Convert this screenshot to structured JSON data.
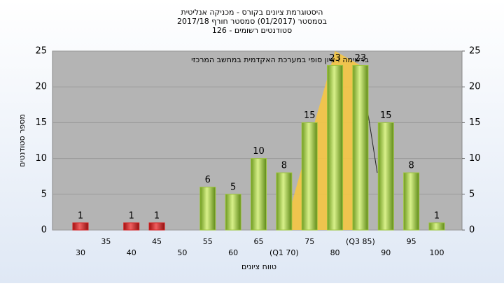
{
  "chart_data": {
    "type": "bar",
    "title": "היסטוגרמת ציונים בקורס - מכניקה אנליטית",
    "subtitle": "בסמסטר  (01/2017)  סמסטר חורף 2017/18",
    "subtitle2": "סטודנטים רשומים - 126",
    "annotation": "ברשימה : ציון סופי במערכת האקדמית במחשב המרכזי",
    "x_label": "טווח ציונים",
    "y_label": "מספר סטודנטים",
    "categories": [
      "30",
      "35",
      "40",
      "45",
      "50",
      "55",
      "60",
      "65",
      "(Q1 70)",
      "75",
      "80",
      "(Q3 85)",
      "90",
      "95",
      "100"
    ],
    "values": [
      1,
      null,
      1,
      1,
      null,
      6,
      5,
      10,
      8,
      15,
      23,
      23,
      15,
      8,
      1
    ],
    "colors": [
      "#d42020",
      null,
      "#d42020",
      "#d42020",
      null,
      "#9cc43c",
      "#9cc43c",
      "#9cc43c",
      "#9cc43c",
      "#9cc43c",
      "#9cc43c",
      "#9cc43c",
      "#9cc43c",
      "#9cc43c",
      "#9cc43c"
    ],
    "ylim": [
      0,
      25
    ],
    "yticks": [
      0,
      5,
      10,
      15,
      20,
      25
    ],
    "y2lim": [
      0,
      25
    ],
    "y2ticks": [
      0,
      5,
      10,
      15,
      20,
      25
    ],
    "grid": true
  }
}
